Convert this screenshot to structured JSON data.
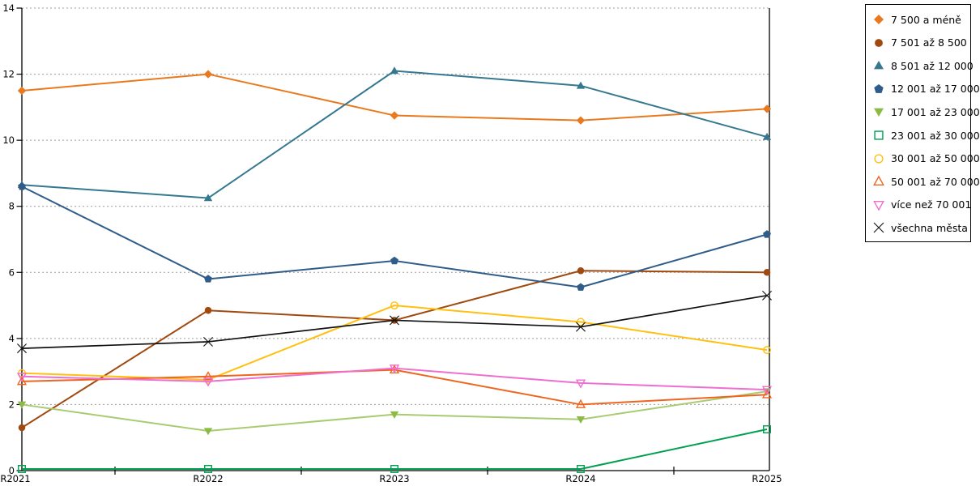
{
  "chart_data": {
    "type": "line",
    "title": "",
    "xlabel": "",
    "ylabel": "",
    "categories": [
      "R2021",
      "R2022",
      "R2023",
      "R2024",
      "R2025"
    ],
    "yticks": [
      0,
      2,
      4,
      6,
      8,
      10,
      12,
      14
    ],
    "ylim": [
      0,
      14
    ],
    "grid": "horizontal-dotted",
    "legend_position": "outside-top-right",
    "series": [
      {
        "name": "7 500 a méně",
        "marker": "diamond-filled",
        "color": "#E8791E",
        "values": [
          11.5,
          12.0,
          10.75,
          10.6,
          10.95
        ]
      },
      {
        "name": "7 501 až 8 500",
        "marker": "circle-filled",
        "color": "#A04A0F",
        "values": [
          1.3,
          4.85,
          4.55,
          6.05,
          6.0
        ]
      },
      {
        "name": "8 501 až 12 000",
        "marker": "triangle-up-filled",
        "color": "#35788F",
        "values": [
          8.65,
          8.25,
          12.1,
          11.65,
          10.1
        ]
      },
      {
        "name": "12 001 až 17 000",
        "marker": "pentagon-filled",
        "color": "#305C8A",
        "values": [
          8.6,
          5.8,
          6.35,
          5.55,
          7.15
        ]
      },
      {
        "name": "17 001 až 23 000",
        "marker": "triangle-down-filled",
        "color": "#8BBB44",
        "line_color": "#A9CB72",
        "values": [
          2.0,
          1.2,
          1.7,
          1.55,
          2.4
        ]
      },
      {
        "name": "23 001 až 30 000",
        "marker": "square-open",
        "color": "#00A050",
        "values": [
          0.05,
          0.05,
          0.05,
          0.05,
          1.25
        ]
      },
      {
        "name": "30 001 až 50 000",
        "marker": "circle-open",
        "color": "#FFC010",
        "values": [
          2.95,
          2.75,
          5.0,
          4.5,
          3.65
        ]
      },
      {
        "name": "50 001 až 70 000",
        "marker": "triangle-up-open",
        "color": "#EF6520",
        "values": [
          2.7,
          2.85,
          3.05,
          2.0,
          2.3
        ]
      },
      {
        "name": "více než 70 001",
        "marker": "triangle-down-open",
        "color": "#EE6FD0",
        "values": [
          2.85,
          2.7,
          3.1,
          2.65,
          2.45
        ]
      },
      {
        "name": "všechna města",
        "marker": "x",
        "color": "#111111",
        "values": [
          3.7,
          3.9,
          4.55,
          4.35,
          5.3
        ]
      }
    ],
    "style": {
      "axis_color": "#000000",
      "gridline_color": "#9C9C9C",
      "legend_border_color": "#000000",
      "background": "#ffffff"
    }
  }
}
